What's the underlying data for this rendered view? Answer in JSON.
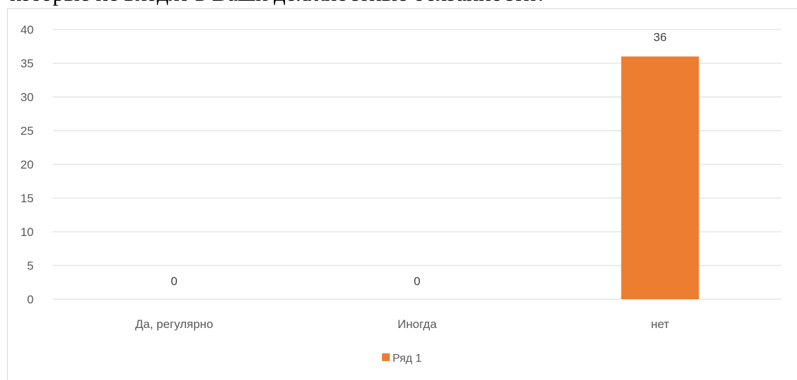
{
  "caption_text": "которые не входят в Ваши должностные обязанности?",
  "chart_data": {
    "type": "bar",
    "categories": [
      "Да, регулярно",
      "Иногда",
      "нет"
    ],
    "series": [
      {
        "name": "Ряд 1",
        "values": [
          0,
          0,
          36
        ],
        "color": "#ed7d31"
      }
    ],
    "data_labels": [
      "0",
      "0",
      "36"
    ],
    "y_ticks": [
      "0",
      "5",
      "10",
      "15",
      "20",
      "25",
      "30",
      "35",
      "40"
    ],
    "ylim": [
      0,
      40
    ],
    "grid": true,
    "legend_position": "bottom"
  }
}
